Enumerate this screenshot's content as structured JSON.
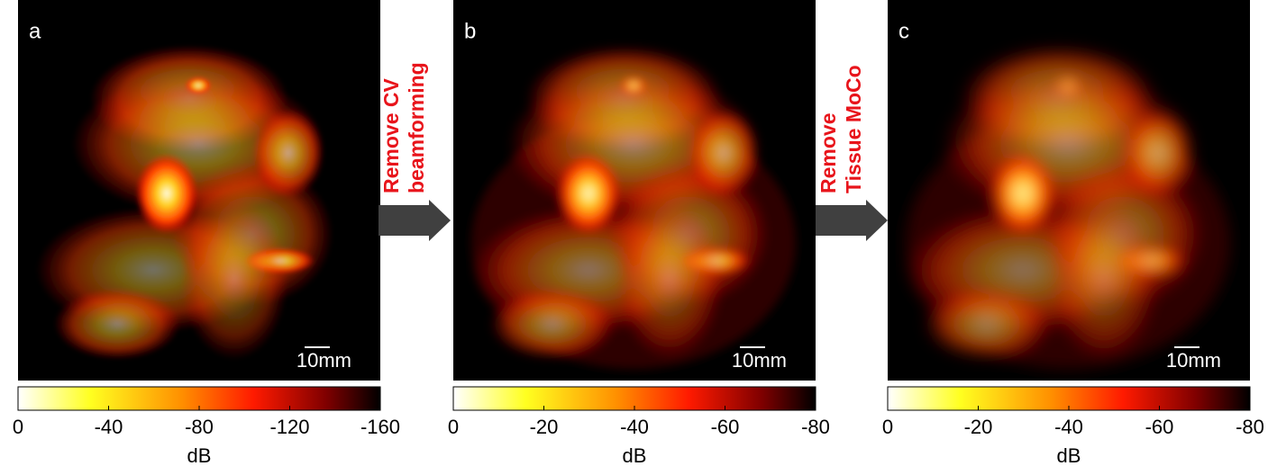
{
  "panels": [
    {
      "label": "a",
      "scale_bar": "10mm",
      "colorbar": {
        "lim": [
          0,
          -160
        ],
        "ticks": [
          0,
          -40,
          -80,
          -120,
          -160
        ],
        "label": "dB"
      }
    },
    {
      "label": "b",
      "scale_bar": "10mm",
      "colorbar": {
        "lim": [
          0,
          -80
        ],
        "ticks": [
          0,
          -20,
          -40,
          -60,
          -80
        ],
        "label": "dB"
      }
    },
    {
      "label": "c",
      "scale_bar": "10mm",
      "colorbar": {
        "lim": [
          0,
          -80
        ],
        "ticks": [
          0,
          -20,
          -40,
          -60,
          -80
        ],
        "label": "dB"
      }
    }
  ],
  "arrows": [
    {
      "lines": [
        "Remove CV",
        "beamforming"
      ]
    },
    {
      "lines": [
        "Remove",
        "Tissue MoCo"
      ]
    }
  ]
}
